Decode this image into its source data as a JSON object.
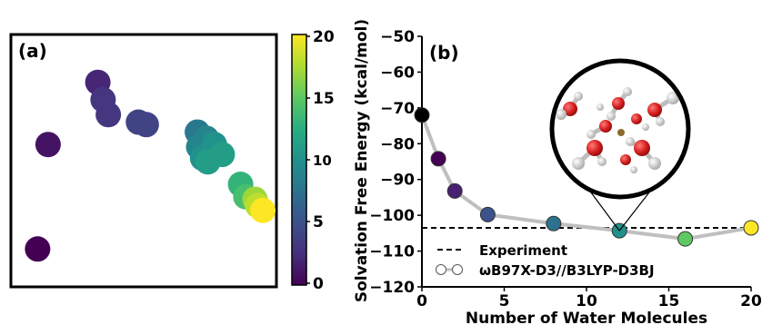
{
  "chart_data": [
    {
      "panel_label": "(a)",
      "type": "scatter",
      "xlim": [
        0,
        10
      ],
      "ylim": [
        0,
        10
      ],
      "axes_visible": false,
      "colorbar": {
        "ticks": [
          0,
          5,
          10,
          15,
          20
        ],
        "range": [
          0,
          20
        ],
        "colormap": "viridis"
      },
      "points": [
        {
          "x": 0.95,
          "y": 1.45,
          "c": 0
        },
        {
          "x": 1.35,
          "y": 5.65,
          "c": 1
        },
        {
          "x": 3.25,
          "y": 8.15,
          "c": 2
        },
        {
          "x": 3.45,
          "y": 7.45,
          "c": 3
        },
        {
          "x": 3.65,
          "y": 6.85,
          "c": 3
        },
        {
          "x": 4.8,
          "y": 6.55,
          "c": 4
        },
        {
          "x": 5.1,
          "y": 6.45,
          "c": 4
        },
        {
          "x": 7.05,
          "y": 6.15,
          "c": 8
        },
        {
          "x": 7.4,
          "y": 5.9,
          "c": 9
        },
        {
          "x": 7.1,
          "y": 5.55,
          "c": 9
        },
        {
          "x": 7.7,
          "y": 5.65,
          "c": 10
        },
        {
          "x": 7.25,
          "y": 5.1,
          "c": 10
        },
        {
          "x": 8.0,
          "y": 5.25,
          "c": 11
        },
        {
          "x": 7.45,
          "y": 4.95,
          "c": 11
        },
        {
          "x": 8.7,
          "y": 4.05,
          "c": 13
        },
        {
          "x": 8.9,
          "y": 3.55,
          "c": 14
        },
        {
          "x": 9.25,
          "y": 3.45,
          "c": 17
        },
        {
          "x": 9.35,
          "y": 3.2,
          "c": 18
        },
        {
          "x": 9.55,
          "y": 3.0,
          "c": 20
        }
      ]
    },
    {
      "panel_label": "(b)",
      "type": "line",
      "xlabel": "Number of Water Molecules",
      "ylabel": "Solvation Free Energy (kcal/mol)",
      "xlim": [
        0,
        20
      ],
      "ylim": [
        -120,
        -50
      ],
      "xticks": [
        0,
        5,
        10,
        15,
        20
      ],
      "yticks": [
        -50,
        -60,
        -70,
        -80,
        -90,
        -100,
        -110,
        -120
      ],
      "series": [
        {
          "name": "ωB97X-D3//B3LYP-D3BJ",
          "x": [
            0,
            1,
            2,
            4,
            8,
            12,
            16,
            20
          ],
          "y": [
            -72.0,
            -84.2,
            -93.2,
            -99.8,
            -102.3,
            -104.3,
            -106.6,
            -103.5
          ],
          "line_color": "#bfbfbf"
        }
      ],
      "reference_line": {
        "name": "Experiment",
        "y": -103.5,
        "style": "dashed",
        "color": "#000000"
      },
      "legend": {
        "placement": "bottom-right",
        "entries": [
          "Experiment",
          "ωB97X-D3//B3LYP-D3BJ"
        ]
      },
      "inset": {
        "description_icon": "water-cluster-icon",
        "zoom_point_x": 12
      }
    }
  ]
}
